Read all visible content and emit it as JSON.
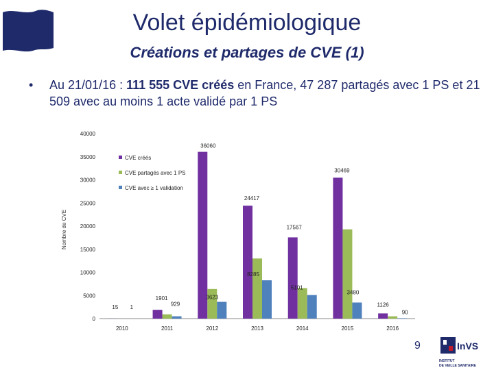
{
  "header": {
    "title": "Volet épidémiologique",
    "subtitle": "Créations et partages de CVE (1)"
  },
  "bullet": {
    "marker": "•",
    "part1": "Au 21/01/16 : ",
    "bold": "111 555 CVE créés",
    "part2": " en France, 47 287 partagés avec 1 PS et 21 509 avec au moins 1 acte validé par 1 PS"
  },
  "chart_data": {
    "type": "bar",
    "categories": [
      "2010",
      "2011",
      "2012",
      "2013",
      "2014",
      "2015",
      "2016"
    ],
    "series": [
      {
        "name": "CVE créés",
        "color": "#7030a0",
        "values": [
          15,
          1901,
          36060,
          24417,
          17567,
          30469,
          1126
        ]
      },
      {
        "name": "CVE partagés avec 1 PS",
        "color": "#9bbb59",
        "values": [
          1,
          929,
          6400,
          13000,
          6600,
          19300,
          500
        ]
      },
      {
        "name": "CVE avec ≥ 1 validation",
        "color": "#4f81bd",
        "values": [
          0,
          500,
          3623,
          8285,
          5101,
          3480,
          90
        ]
      }
    ],
    "data_labels": [
      {
        "text": "15",
        "cat": 0,
        "value": 15
      },
      {
        "text": "1",
        "cat": 0,
        "value": 1
      },
      {
        "text": "1901",
        "cat": 1,
        "value": 1901
      },
      {
        "text": "929",
        "cat": 1,
        "value": 929
      },
      {
        "text": "36060",
        "cat": 2,
        "value": 36060
      },
      {
        "text": "3623",
        "cat": 2,
        "value": 3623
      },
      {
        "text": "24417",
        "cat": 3,
        "value": 24417
      },
      {
        "text": "8285",
        "cat": 3,
        "value": 8285
      },
      {
        "text": "17567",
        "cat": 4,
        "value": 17567
      },
      {
        "text": "5101",
        "cat": 4,
        "value": 5101
      },
      {
        "text": "30469",
        "cat": 5,
        "value": 30469
      },
      {
        "text": "3480",
        "cat": 5,
        "value": 3480
      },
      {
        "text": "1126",
        "cat": 6,
        "value": 1126
      },
      {
        "text": "90",
        "cat": 6,
        "value": 90
      }
    ],
    "yticks": [
      "0",
      "5000",
      "10000",
      "15000",
      "20000",
      "25000",
      "30000",
      "35000",
      "40000"
    ],
    "ylabel": "Nombre de CVE",
    "ylim": [
      0,
      40000
    ],
    "legend_position": "top-left",
    "grid": false
  },
  "footer": {
    "page_number": "9",
    "logo_text": "InVS",
    "logo_line1": "INSTITUT",
    "logo_line2": "DE VEILLE SANITAIRE"
  }
}
